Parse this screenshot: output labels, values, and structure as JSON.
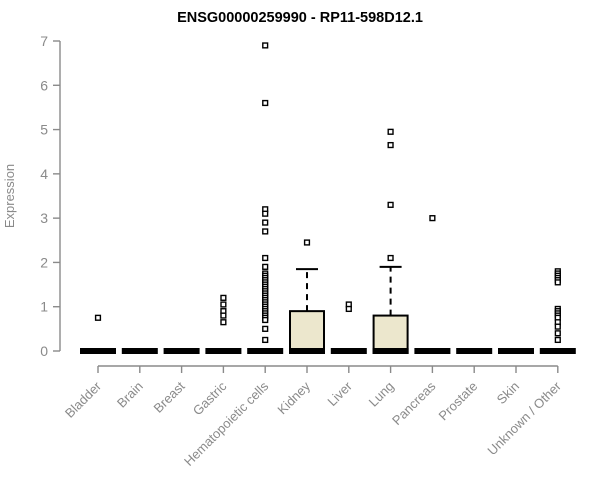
{
  "chart_data": {
    "type": "boxplot",
    "title": "ENSG00000259990 - RP11-598D12.1",
    "ylabel": "Expression",
    "xlabel": "",
    "ylim": [
      0,
      7
    ],
    "yticks": [
      0,
      1,
      2,
      3,
      4,
      5,
      6,
      7
    ],
    "grid": false,
    "legend": "none",
    "categories": [
      "Bladder",
      "Brain",
      "Breast",
      "Gastric",
      "Hematopoietic cells",
      "Kidney",
      "Liver",
      "Lung",
      "Pancreas",
      "Prostate",
      "Skin",
      "Unknown / Other"
    ],
    "series": [
      {
        "category": "Bladder",
        "whisker_low": 0,
        "q1": 0,
        "median": 0,
        "q3": 0,
        "whisker_high": 0,
        "outliers": [
          0.75
        ]
      },
      {
        "category": "Brain",
        "whisker_low": 0,
        "q1": 0,
        "median": 0,
        "q3": 0,
        "whisker_high": 0,
        "outliers": []
      },
      {
        "category": "Breast",
        "whisker_low": 0,
        "q1": 0,
        "median": 0,
        "q3": 0,
        "whisker_high": 0,
        "outliers": []
      },
      {
        "category": "Gastric",
        "whisker_low": 0,
        "q1": 0,
        "median": 0,
        "q3": 0,
        "whisker_high": 0,
        "outliers": [
          1.2,
          1.05,
          0.9,
          0.8,
          0.65
        ]
      },
      {
        "category": "Hematopoietic cells",
        "whisker_low": 0,
        "q1": 0,
        "median": 0,
        "q3": 0,
        "whisker_high": 0,
        "outliers": [
          6.9,
          5.6,
          3.2,
          3.1,
          2.9,
          2.7,
          2.1,
          1.9,
          1.75,
          1.7,
          1.65,
          1.6,
          1.55,
          1.5,
          1.45,
          1.4,
          1.35,
          1.3,
          1.25,
          1.2,
          1.15,
          1.1,
          1.05,
          1.0,
          0.95,
          0.9,
          0.85,
          0.8,
          0.75,
          0.7,
          0.5,
          0.25
        ]
      },
      {
        "category": "Kidney",
        "whisker_low": 0,
        "q1": 0,
        "median": 0,
        "q3": 0.9,
        "whisker_high": 1.85,
        "outliers": [
          2.45
        ]
      },
      {
        "category": "Liver",
        "whisker_low": 0,
        "q1": 0,
        "median": 0,
        "q3": 0,
        "whisker_high": 0,
        "outliers": [
          1.05,
          0.95
        ]
      },
      {
        "category": "Lung",
        "whisker_low": 0,
        "q1": 0,
        "median": 0,
        "q3": 0.8,
        "whisker_high": 1.9,
        "outliers": [
          4.95,
          4.65,
          3.3,
          2.1
        ]
      },
      {
        "category": "Pancreas",
        "whisker_low": 0,
        "q1": 0,
        "median": 0,
        "q3": 0,
        "whisker_high": 0,
        "outliers": [
          3.0
        ]
      },
      {
        "category": "Prostate",
        "whisker_low": 0,
        "q1": 0,
        "median": 0,
        "q3": 0,
        "whisker_high": 0,
        "outliers": []
      },
      {
        "category": "Skin",
        "whisker_low": 0,
        "q1": 0,
        "median": 0,
        "q3": 0,
        "whisker_high": 0,
        "outliers": []
      },
      {
        "category": "Unknown / Other",
        "whisker_low": 0,
        "q1": 0,
        "median": 0,
        "q3": 0,
        "whisker_high": 0,
        "outliers": [
          1.8,
          1.75,
          1.7,
          1.65,
          1.6,
          1.55,
          0.95,
          0.9,
          0.85,
          0.8,
          0.75,
          0.65,
          0.55,
          0.4,
          0.25
        ]
      }
    ],
    "colors": {
      "box_fill": "#ECE7CD",
      "box_border": "#000000",
      "median": "#000000",
      "whisker": "#000000",
      "outlier_border": "#000000",
      "outlier_fill": "#ffffff",
      "axis": "#8a8a8a",
      "tick_label": "#8a8a8a",
      "title": "#000000",
      "background": "#ffffff"
    }
  }
}
